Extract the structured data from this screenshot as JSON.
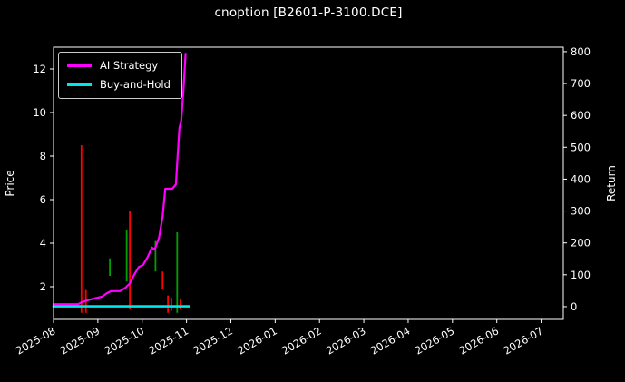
{
  "title": "cnoption [B2601-P-3100.DCE]",
  "colors": {
    "background": "#000000",
    "text": "#ffffff",
    "frame": "#ffffff",
    "ai_strategy": "#ff00ff",
    "buy_and_hold": "#00e5ee",
    "bar_up": "#ff0000",
    "bar_down": "#00a000"
  },
  "chart_data": {
    "type": "line",
    "title": "cnoption [B2601-P-3100.DCE]",
    "xlabel": "",
    "ylabel_left": "Price",
    "ylabel_right": "Return",
    "x_unit": "months since 2025-08-01",
    "x_range": [
      0,
      11.5
    ],
    "x_tick_labels": [
      "2025-08",
      "2025-09",
      "2025-10",
      "2025-11",
      "2025-12",
      "2026-01",
      "2026-02",
      "2026-03",
      "2026-04",
      "2026-05",
      "2026-06",
      "2026-07"
    ],
    "left_axis": {
      "label": "Price",
      "range": [
        0.5,
        13.0
      ],
      "ticks": [
        2,
        4,
        6,
        8,
        10,
        12
      ]
    },
    "right_axis": {
      "label": "Return",
      "range": [
        -40,
        814
      ],
      "ticks": [
        0,
        100,
        200,
        300,
        400,
        500,
        600,
        700,
        800
      ]
    },
    "grid": false,
    "legend_position": "upper-left",
    "legend": [
      {
        "label": "AI Strategy",
        "color": "#ff00ff"
      },
      {
        "label": "Buy-and-Hold",
        "color": "#00e5ee"
      }
    ],
    "series": [
      {
        "name": "AI Strategy",
        "axis": "left",
        "color": "#ff00ff",
        "width": 2.2,
        "points": [
          [
            0.0,
            1.2
          ],
          [
            0.55,
            1.2
          ],
          [
            0.65,
            1.3
          ],
          [
            0.8,
            1.4
          ],
          [
            1.0,
            1.5
          ],
          [
            1.1,
            1.55
          ],
          [
            1.2,
            1.7
          ],
          [
            1.3,
            1.8
          ],
          [
            1.5,
            1.8
          ],
          [
            1.62,
            1.95
          ],
          [
            1.72,
            2.15
          ],
          [
            1.82,
            2.55
          ],
          [
            1.92,
            2.9
          ],
          [
            2.02,
            3.0
          ],
          [
            2.12,
            3.35
          ],
          [
            2.22,
            3.8
          ],
          [
            2.28,
            3.7
          ],
          [
            2.38,
            4.25
          ],
          [
            2.46,
            5.2
          ],
          [
            2.52,
            6.5
          ],
          [
            2.68,
            6.5
          ],
          [
            2.76,
            6.7
          ],
          [
            2.8,
            8.0
          ],
          [
            2.84,
            9.3
          ],
          [
            2.88,
            9.6
          ],
          [
            2.93,
            11.0
          ],
          [
            2.98,
            12.7
          ]
        ]
      },
      {
        "name": "Buy-and-Hold",
        "axis": "left",
        "color": "#00e5ee",
        "width": 2.6,
        "points": [
          [
            0.0,
            1.1
          ],
          [
            3.06,
            1.1
          ]
        ]
      }
    ],
    "price_bars": [
      {
        "m": 0.63,
        "low": 0.8,
        "high": 8.5,
        "color": "#ff0000"
      },
      {
        "m": 0.73,
        "low": 0.8,
        "high": 1.85,
        "color": "#ff0000"
      },
      {
        "m": 1.27,
        "low": 2.5,
        "high": 3.3,
        "color": "#00a000"
      },
      {
        "m": 1.65,
        "low": 2.25,
        "high": 4.6,
        "color": "#00a000"
      },
      {
        "m": 1.72,
        "low": 1.0,
        "high": 5.5,
        "color": "#ff0000"
      },
      {
        "m": 2.3,
        "low": 2.7,
        "high": 4.1,
        "color": "#00a000"
      },
      {
        "m": 2.46,
        "low": 1.9,
        "high": 2.7,
        "color": "#ff0000"
      },
      {
        "m": 2.58,
        "low": 0.8,
        "high": 1.6,
        "color": "#ff0000"
      },
      {
        "m": 2.66,
        "low": 0.9,
        "high": 1.5,
        "color": "#ff0000"
      },
      {
        "m": 2.79,
        "low": 0.8,
        "high": 4.5,
        "color": "#00a000"
      },
      {
        "m": 2.86,
        "low": 1.0,
        "high": 1.45,
        "color": "#ff0000"
      }
    ]
  }
}
